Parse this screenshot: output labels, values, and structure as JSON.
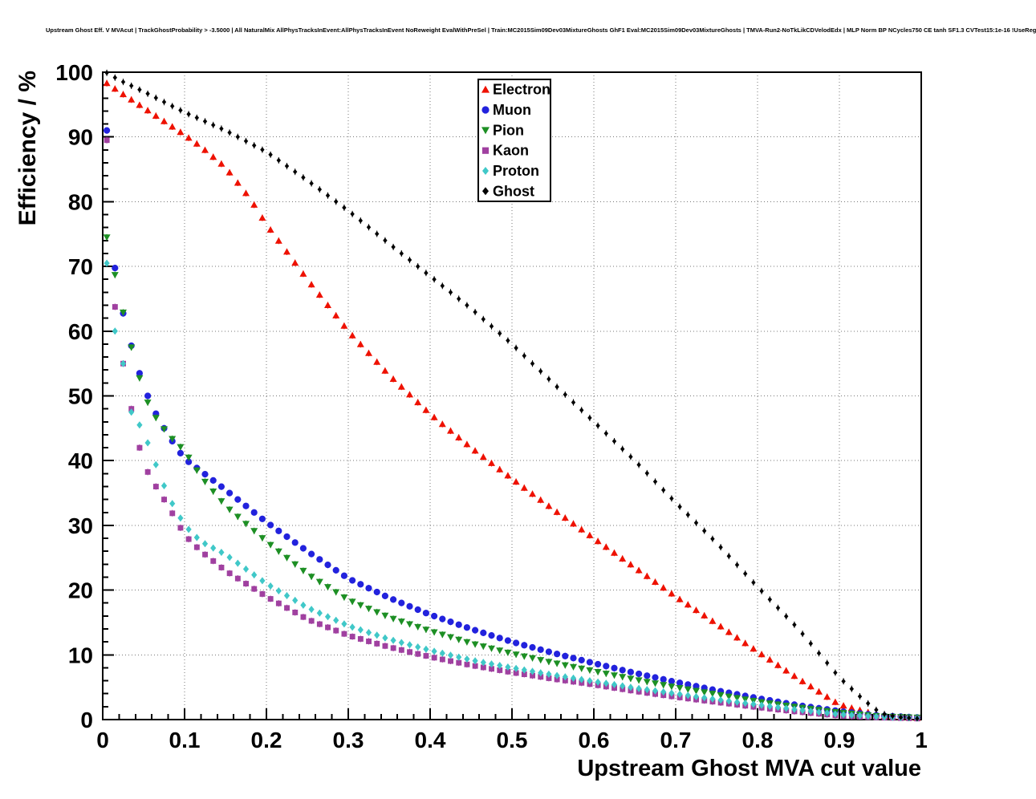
{
  "header": {
    "title": "Upstream Ghost Eff. V MVAcut | TrackGhostProbability > -3.5000 | All NaturalMix AllPhysTracksInEvent:AllPhysTracksInEvent NoReweight EvalWithPreSel | Train:MC2015Sim09Dev03MixtureGhosts GhF1 Eval:MC2015Sim09Dev03MixtureGhosts | TMVA-Run2-NoTkLikCDVelodEdx | MLP Norm BP NCycles750 CE tanh SF1.3 CVTest15:1e-16 !UseReg"
  },
  "chart_data": {
    "type": "scatter",
    "title": "Upstream Ghost Eff. V MVAcut",
    "xlabel": "Upstream Ghost MVA cut value",
    "ylabel": "Efficiency / %",
    "xlim": [
      0,
      1
    ],
    "ylim": [
      0,
      100
    ],
    "x_tick_step": 0.1,
    "y_tick_step": 10,
    "x_minor_step": 0.02,
    "y_minor_step": 2,
    "grid": true,
    "grid_style": "dotted",
    "marker_step": 0.01,
    "error_bar_halfwidth_pct": 0.5,
    "legend": {
      "position": "top-center",
      "entries": [
        "Electron",
        "Muon",
        "Pion",
        "Kaon",
        "Proton",
        "Ghost"
      ]
    },
    "series": [
      {
        "name": "Electron",
        "color": "#ee1100",
        "marker": "triangle-up",
        "size": 4.5,
        "points": [
          [
            0.005,
            98.3
          ],
          [
            0.02,
            97.0
          ],
          [
            0.05,
            94.5
          ],
          [
            0.08,
            92.0
          ],
          [
            0.1,
            90.3
          ],
          [
            0.12,
            88.5
          ],
          [
            0.15,
            85.3
          ],
          [
            0.18,
            80.5
          ],
          [
            0.2,
            76.5
          ],
          [
            0.25,
            68.0
          ],
          [
            0.3,
            60.0
          ],
          [
            0.35,
            53.2
          ],
          [
            0.4,
            47.2
          ],
          [
            0.45,
            42.0
          ],
          [
            0.5,
            37.2
          ],
          [
            0.55,
            32.5
          ],
          [
            0.6,
            28.0
          ],
          [
            0.65,
            23.5
          ],
          [
            0.7,
            19.0
          ],
          [
            0.75,
            14.8
          ],
          [
            0.8,
            10.5
          ],
          [
            0.85,
            6.3
          ],
          [
            0.9,
            2.3
          ],
          [
            0.95,
            0.6
          ],
          [
            1.0,
            0.2
          ]
        ]
      },
      {
        "name": "Muon",
        "color": "#2222dd",
        "marker": "circle",
        "size": 4.5,
        "points": [
          [
            0.005,
            91.0
          ],
          [
            0.01,
            74.0
          ],
          [
            0.02,
            65.5
          ],
          [
            0.03,
            60.0
          ],
          [
            0.04,
            55.5
          ],
          [
            0.05,
            51.5
          ],
          [
            0.06,
            48.5
          ],
          [
            0.07,
            46.0
          ],
          [
            0.08,
            44.0
          ],
          [
            0.09,
            42.0
          ],
          [
            0.1,
            40.3
          ],
          [
            0.15,
            35.5
          ],
          [
            0.2,
            30.5
          ],
          [
            0.25,
            26.0
          ],
          [
            0.3,
            21.8
          ],
          [
            0.35,
            18.8
          ],
          [
            0.4,
            16.2
          ],
          [
            0.45,
            14.0
          ],
          [
            0.5,
            12.0
          ],
          [
            0.55,
            10.3
          ],
          [
            0.6,
            8.7
          ],
          [
            0.65,
            7.2
          ],
          [
            0.7,
            5.8
          ],
          [
            0.75,
            4.5
          ],
          [
            0.8,
            3.3
          ],
          [
            0.85,
            2.2
          ],
          [
            0.9,
            1.3
          ],
          [
            0.95,
            0.6
          ],
          [
            1.0,
            0.3
          ]
        ]
      },
      {
        "name": "Pion",
        "color": "#1d8f24",
        "marker": "triangle-down",
        "size": 4.5,
        "points": [
          [
            0.005,
            74.5
          ],
          [
            0.02,
            65.8
          ],
          [
            0.03,
            60.0
          ],
          [
            0.04,
            55.0
          ],
          [
            0.05,
            50.5
          ],
          [
            0.06,
            47.5
          ],
          [
            0.08,
            44.0
          ],
          [
            0.1,
            41.5
          ],
          [
            0.12,
            37.5
          ],
          [
            0.15,
            33.0
          ],
          [
            0.2,
            27.5
          ],
          [
            0.25,
            22.5
          ],
          [
            0.3,
            18.5
          ],
          [
            0.35,
            15.8
          ],
          [
            0.4,
            13.7
          ],
          [
            0.45,
            11.8
          ],
          [
            0.5,
            10.2
          ],
          [
            0.55,
            8.8
          ],
          [
            0.6,
            7.5
          ],
          [
            0.65,
            6.2
          ],
          [
            0.7,
            5.0
          ],
          [
            0.75,
            3.9
          ],
          [
            0.8,
            2.8
          ],
          [
            0.85,
            1.9
          ],
          [
            0.9,
            1.1
          ],
          [
            0.95,
            0.5
          ],
          [
            1.0,
            0.3
          ]
        ]
      },
      {
        "name": "Kaon",
        "color": "#a040a0",
        "marker": "square",
        "size": 4.2,
        "points": [
          [
            0.005,
            89.5
          ],
          [
            0.01,
            69.0
          ],
          [
            0.02,
            58.5
          ],
          [
            0.03,
            51.5
          ],
          [
            0.04,
            44.5
          ],
          [
            0.05,
            39.5
          ],
          [
            0.06,
            37.0
          ],
          [
            0.08,
            33.0
          ],
          [
            0.1,
            28.5
          ],
          [
            0.12,
            26.0
          ],
          [
            0.15,
            23.0
          ],
          [
            0.2,
            19.0
          ],
          [
            0.25,
            15.5
          ],
          [
            0.3,
            13.0
          ],
          [
            0.35,
            11.2
          ],
          [
            0.4,
            9.7
          ],
          [
            0.45,
            8.4
          ],
          [
            0.5,
            7.3
          ],
          [
            0.55,
            6.3
          ],
          [
            0.6,
            5.4
          ],
          [
            0.65,
            4.4
          ],
          [
            0.7,
            3.5
          ],
          [
            0.75,
            2.7
          ],
          [
            0.8,
            1.9
          ],
          [
            0.85,
            1.2
          ],
          [
            0.9,
            0.6
          ],
          [
            0.95,
            0.3
          ],
          [
            1.0,
            0.15
          ]
        ]
      },
      {
        "name": "Proton",
        "color": "#40c8c8",
        "marker": "diamond",
        "size": 4.5,
        "points": [
          [
            0.005,
            70.5
          ],
          [
            0.015,
            60.0
          ],
          [
            0.025,
            55.0
          ],
          [
            0.035,
            47.5
          ],
          [
            0.05,
            44.5
          ],
          [
            0.06,
            41.0
          ],
          [
            0.08,
            34.5
          ],
          [
            0.1,
            30.0
          ],
          [
            0.12,
            27.5
          ],
          [
            0.15,
            25.5
          ],
          [
            0.2,
            21.0
          ],
          [
            0.25,
            17.3
          ],
          [
            0.3,
            14.5
          ],
          [
            0.35,
            12.4
          ],
          [
            0.4,
            10.7
          ],
          [
            0.45,
            9.2
          ],
          [
            0.5,
            8.0
          ],
          [
            0.55,
            6.9
          ],
          [
            0.6,
            5.9
          ],
          [
            0.65,
            4.9
          ],
          [
            0.7,
            4.0
          ],
          [
            0.75,
            3.1
          ],
          [
            0.8,
            2.3
          ],
          [
            0.85,
            1.5
          ],
          [
            0.9,
            0.8
          ],
          [
            0.95,
            0.4
          ],
          [
            1.0,
            0.2
          ]
        ]
      },
      {
        "name": "Ghost",
        "color": "#000000",
        "marker": "diamond",
        "size": 3.4,
        "points": [
          [
            0.005,
            99.9
          ],
          [
            0.02,
            98.8
          ],
          [
            0.05,
            97.0
          ],
          [
            0.1,
            93.8
          ],
          [
            0.15,
            91.0
          ],
          [
            0.2,
            87.7
          ],
          [
            0.25,
            83.3
          ],
          [
            0.3,
            78.6
          ],
          [
            0.35,
            73.5
          ],
          [
            0.4,
            68.5
          ],
          [
            0.45,
            63.5
          ],
          [
            0.5,
            58.0
          ],
          [
            0.55,
            52.0
          ],
          [
            0.6,
            46.0
          ],
          [
            0.65,
            40.0
          ],
          [
            0.7,
            33.5
          ],
          [
            0.75,
            27.3
          ],
          [
            0.8,
            20.5
          ],
          [
            0.85,
            14.0
          ],
          [
            0.9,
            6.5
          ],
          [
            0.93,
            3.0
          ],
          [
            0.95,
            1.0
          ],
          [
            0.97,
            0.4
          ],
          [
            1.0,
            0.1
          ]
        ]
      }
    ]
  },
  "colors": {
    "background": "#ffffff",
    "frame": "#000000",
    "grid": "#777777",
    "text": "#000000"
  }
}
